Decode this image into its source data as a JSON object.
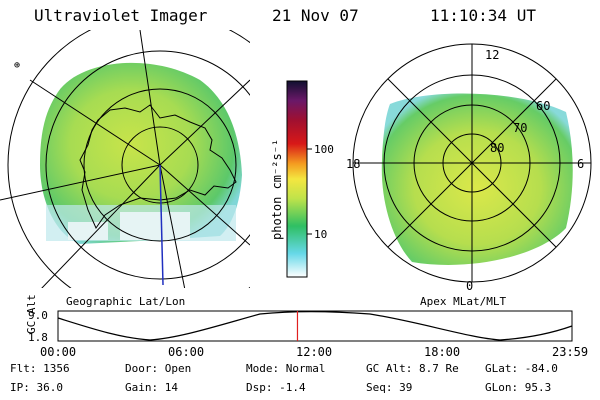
{
  "header": {
    "instrument": "Ultraviolet Imager",
    "date": "21 Nov 07",
    "time": "11:10:34 UT"
  },
  "left_panel": {
    "label": "Geographic Lat/Lon"
  },
  "right_panel": {
    "label": "Apex MLat/MLT",
    "mlt_labels": [
      "12",
      "18",
      "6",
      "0"
    ],
    "lat_labels": [
      "60",
      "70",
      "80"
    ]
  },
  "colorbar": {
    "unit": "photon cm⁻²s⁻¹",
    "tick_labels": [
      "100",
      "10"
    ]
  },
  "altitude_plot": {
    "ylabel": "GC Alt",
    "y_ticks": [
      "9.0",
      "1.8"
    ],
    "x_ticks": [
      "00:00",
      "06:00",
      "12:00",
      "18:00",
      "23:59"
    ],
    "current_time_fraction": 0.4659
  },
  "status": {
    "flt": "Flt: 1356",
    "ip": "IP: 36.0",
    "door": "Door: Open",
    "gain": "Gain: 14",
    "mode": "Mode: Normal",
    "dsp": "Dsp:    -1.4",
    "gc_alt": "GC Alt: 8.7 Re",
    "seq": "Seq: 39",
    "glat": "GLat: -84.0",
    "glon": "GLon:  95.3"
  },
  "colors": {
    "line": "#000000",
    "marker": "#e02020",
    "meridian": "#2030c0"
  }
}
